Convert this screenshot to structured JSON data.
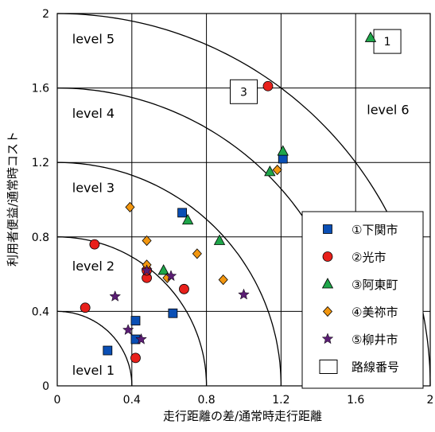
{
  "chart_data": {
    "type": "scatter",
    "xlabel": "走行距離の差/通常時走行距離",
    "ylabel": "利用者便益/通常時コスト",
    "xlim": [
      0,
      2
    ],
    "ylim": [
      0,
      2
    ],
    "xticks": [
      "0",
      "0.4",
      "0.8",
      "1.2",
      "1.6",
      "2"
    ],
    "yticks": [
      "0",
      "0.4",
      "0.8",
      "1.2",
      "1.6",
      "2"
    ],
    "grid": true,
    "legend_position": "bottom-right",
    "level_arcs": [
      0.4,
      0.8,
      1.2,
      1.6,
      2.0
    ],
    "level_labels": [
      "level 1",
      "level 2",
      "level 3",
      "level 4",
      "level 5",
      "level 6"
    ],
    "route_labels": [
      {
        "text": "1",
        "x": 1.77,
        "y": 1.85
      },
      {
        "text": "3",
        "x": 1.0,
        "y": 1.58
      }
    ],
    "series": [
      {
        "name": "①下関市",
        "marker": "square",
        "color": "#0a4fb5",
        "points": [
          [
            0.27,
            0.19
          ],
          [
            0.42,
            0.35
          ],
          [
            0.42,
            0.25
          ],
          [
            0.62,
            0.39
          ],
          [
            0.67,
            0.93
          ],
          [
            1.21,
            1.22
          ]
        ]
      },
      {
        "name": "②光市",
        "marker": "circle",
        "color": "#e8201b",
        "points": [
          [
            0.15,
            0.42
          ],
          [
            0.2,
            0.76
          ],
          [
            0.42,
            0.15
          ],
          [
            0.48,
            0.58
          ],
          [
            0.48,
            0.62
          ],
          [
            0.68,
            0.52
          ],
          [
            1.13,
            1.61
          ]
        ]
      },
      {
        "name": "③阿東町",
        "marker": "triangle",
        "color": "#1fa64a",
        "points": [
          [
            0.57,
            0.62
          ],
          [
            0.7,
            0.89
          ],
          [
            0.87,
            0.78
          ],
          [
            1.14,
            1.15
          ],
          [
            1.21,
            1.26
          ],
          [
            1.68,
            1.87
          ]
        ]
      },
      {
        "name": "④美祢市",
        "marker": "diamond",
        "color": "#f2960f",
        "points": [
          [
            0.39,
            0.96
          ],
          [
            0.48,
            0.78
          ],
          [
            0.48,
            0.65
          ],
          [
            0.59,
            0.58
          ],
          [
            0.75,
            0.71
          ],
          [
            0.89,
            0.57
          ],
          [
            1.18,
            1.16
          ]
        ]
      },
      {
        "name": "⑤柳井市",
        "marker": "star",
        "color": "#5a1d73",
        "points": [
          [
            0.31,
            0.48
          ],
          [
            0.38,
            0.3
          ],
          [
            0.45,
            0.25
          ],
          [
            0.48,
            0.62
          ],
          [
            0.61,
            0.59
          ],
          [
            1.0,
            0.49
          ]
        ]
      }
    ],
    "legend_extra": "路線番号"
  }
}
